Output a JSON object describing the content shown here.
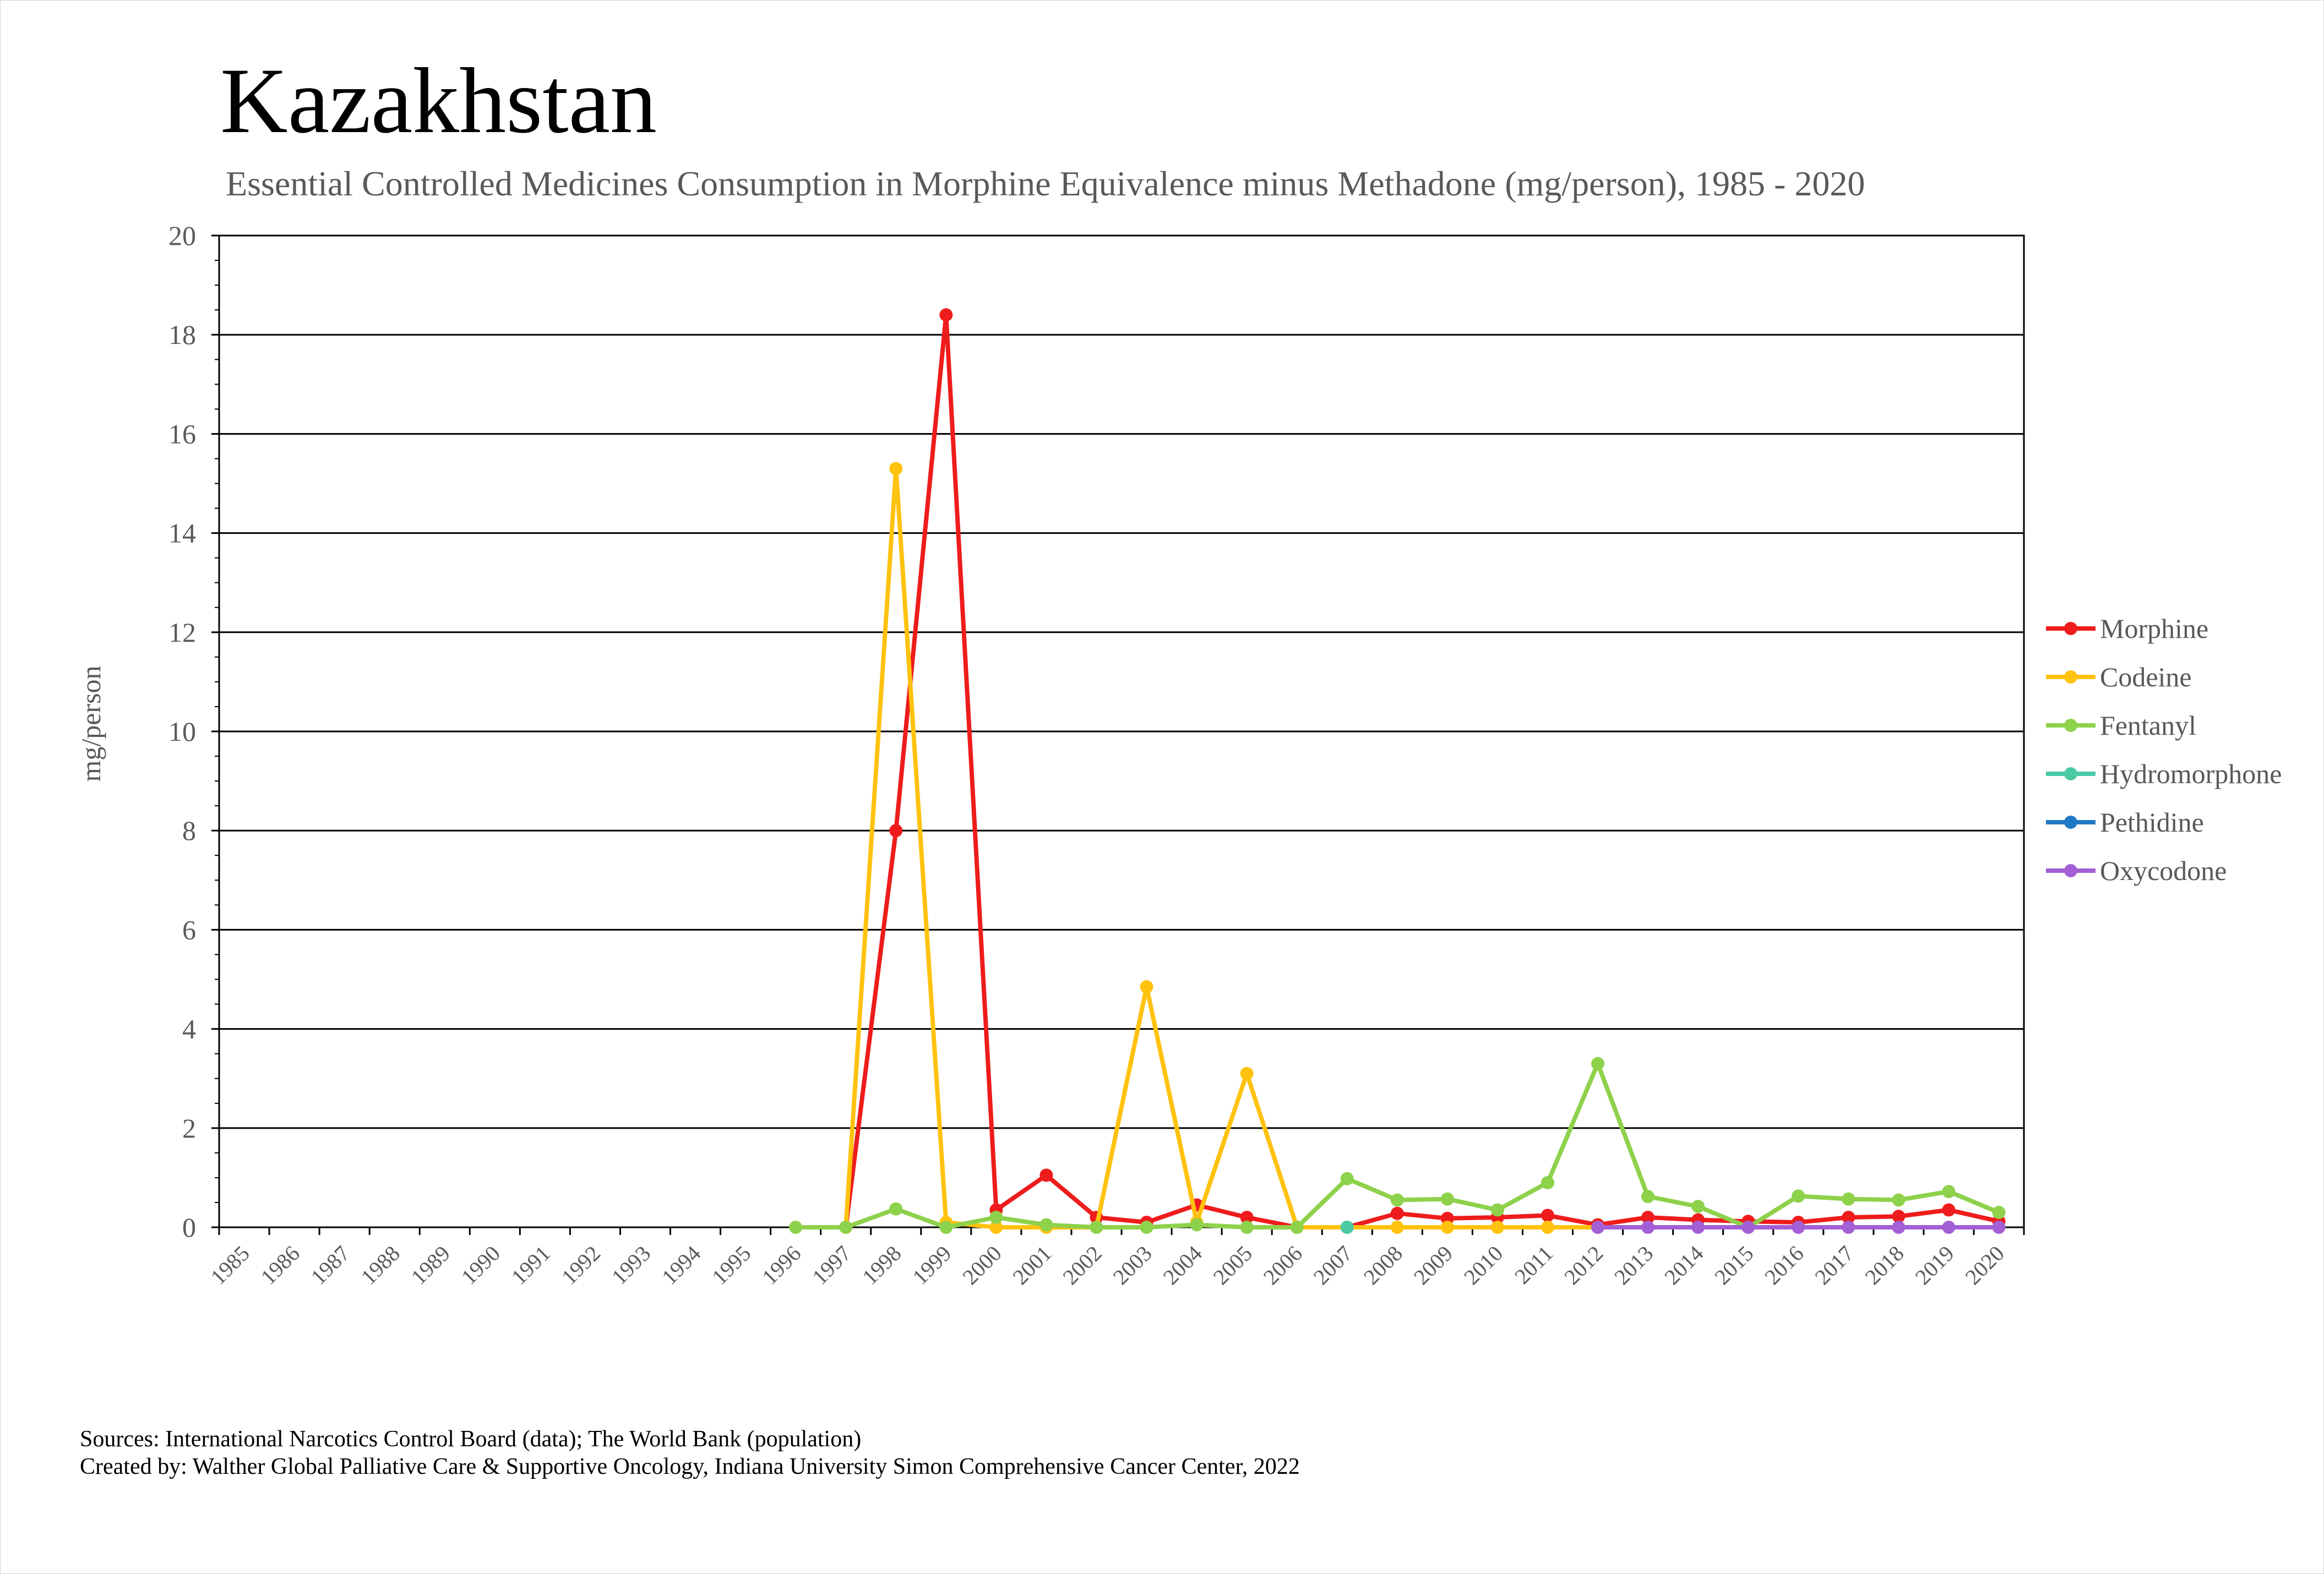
{
  "chart_data": {
    "type": "line",
    "title": "Kazakhstan",
    "subtitle": "Essential Controlled Medicines Consumption in Morphine Equivalence minus Methadone (mg/person), 1985 - 2020",
    "ylabel": "mg/person",
    "xlabel": "",
    "ylim": [
      0,
      20
    ],
    "yticks": [
      0,
      2,
      4,
      6,
      8,
      10,
      12,
      14,
      16,
      18,
      20
    ],
    "grid": true,
    "legend_position": "right",
    "categories": [
      "1985",
      "1986",
      "1987",
      "1988",
      "1989",
      "1990",
      "1991",
      "1992",
      "1993",
      "1994",
      "1995",
      "1996",
      "1997",
      "1998",
      "1999",
      "2000",
      "2001",
      "2002",
      "2003",
      "2004",
      "2005",
      "2006",
      "2007",
      "2008",
      "2009",
      "2010",
      "2011",
      "2012",
      "2013",
      "2014",
      "2015",
      "2016",
      "2017",
      "2018",
      "2019",
      "2020"
    ],
    "series": [
      {
        "name": "Morphine",
        "color": "#ee1c1c",
        "values": [
          null,
          null,
          null,
          null,
          null,
          null,
          null,
          null,
          null,
          null,
          null,
          null,
          0,
          8.0,
          18.4,
          0.35,
          1.05,
          0.2,
          0.1,
          0.45,
          0.2,
          0.0,
          0.0,
          0.28,
          0.18,
          0.2,
          0.24,
          0.05,
          0.2,
          0.15,
          0.12,
          0.1,
          0.2,
          0.22,
          0.35,
          0.12
        ]
      },
      {
        "name": "Codeine",
        "color": "#ffc20e",
        "values": [
          null,
          null,
          null,
          null,
          null,
          null,
          null,
          null,
          null,
          null,
          null,
          null,
          0,
          15.3,
          0.1,
          0.0,
          0.0,
          0.0,
          4.85,
          0.1,
          3.1,
          0.0,
          0.0,
          0.0,
          0.0,
          0.0,
          0.0,
          0.0,
          null,
          null,
          null,
          null,
          null,
          null,
          null,
          null
        ]
      },
      {
        "name": "Fentanyl",
        "color": "#8ed14b",
        "values": [
          null,
          null,
          null,
          null,
          null,
          null,
          null,
          null,
          null,
          null,
          null,
          0,
          0,
          0.37,
          0.0,
          0.2,
          0.05,
          0.0,
          0.0,
          0.05,
          0.0,
          0.0,
          0.98,
          0.55,
          0.57,
          0.35,
          0.9,
          3.3,
          0.62,
          0.42,
          0.0,
          0.63,
          0.57,
          0.55,
          0.72,
          0.3
        ]
      },
      {
        "name": "Hydromorphone",
        "color": "#4ac9a5",
        "values": [
          null,
          null,
          null,
          null,
          null,
          null,
          null,
          null,
          null,
          null,
          null,
          null,
          null,
          null,
          null,
          null,
          null,
          null,
          null,
          null,
          null,
          null,
          0,
          null,
          null,
          null,
          null,
          null,
          null,
          null,
          null,
          null,
          null,
          null,
          null,
          null
        ]
      },
      {
        "name": "Pethidine",
        "color": "#1f78c4",
        "values": [
          null,
          null,
          null,
          null,
          null,
          null,
          null,
          null,
          null,
          null,
          null,
          null,
          null,
          null,
          null,
          null,
          null,
          null,
          null,
          null,
          null,
          null,
          null,
          null,
          null,
          null,
          null,
          null,
          null,
          null,
          null,
          null,
          null,
          null,
          null,
          null
        ]
      },
      {
        "name": "Oxycodone",
        "color": "#a35fd6",
        "values": [
          null,
          null,
          null,
          null,
          null,
          null,
          null,
          null,
          null,
          null,
          null,
          null,
          null,
          null,
          null,
          null,
          null,
          null,
          null,
          null,
          null,
          null,
          null,
          null,
          null,
          null,
          null,
          0,
          0,
          0,
          0,
          0,
          0,
          0,
          0,
          0
        ]
      }
    ],
    "sources_text": "Sources: International Narcotics Control Board (data); The World Bank (population)",
    "created_by_text": "Created by: Walther Global Palliative Care & Supportive Oncology, Indiana University Simon Comprehensive Cancer Center, 2022"
  }
}
